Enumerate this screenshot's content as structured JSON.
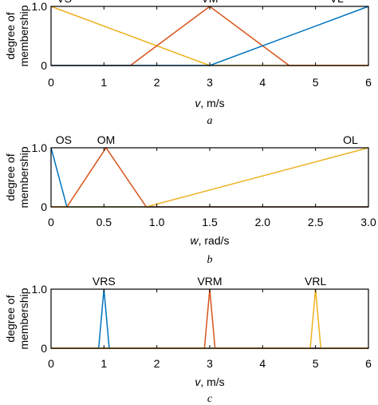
{
  "chart_data": [
    {
      "type": "line",
      "caption": "a",
      "xlabel_var": "v",
      "xlabel_unit": ", m/s",
      "ylabel_lines": [
        "degree of",
        "membership"
      ],
      "xlim": [
        0,
        6
      ],
      "ylim": [
        0,
        1
      ],
      "xticks": [
        0,
        1,
        2,
        3,
        4,
        5,
        6
      ],
      "xtick_labels": [
        "0",
        "1",
        "2",
        "3",
        "4",
        "5",
        "6"
      ],
      "yticks": [
        0,
        1
      ],
      "ytick_labels": [
        "0",
        "1.0"
      ],
      "grid": false,
      "series": [
        {
          "name": "VS",
          "color": "#EDB120",
          "points": [
            [
              0,
              1
            ],
            [
              3,
              0
            ],
            [
              6,
              0
            ]
          ],
          "label_at": [
            0.25,
            1.07
          ]
        },
        {
          "name": "VM",
          "color": "#D95319",
          "points": [
            [
              0,
              0
            ],
            [
              1.5,
              0
            ],
            [
              3,
              1
            ],
            [
              4.5,
              0
            ],
            [
              6,
              0
            ]
          ],
          "label_at": [
            3.0,
            1.07
          ]
        },
        {
          "name": "VL",
          "color": "#0072BD",
          "points": [
            [
              0,
              0
            ],
            [
              3,
              0
            ],
            [
              6,
              1
            ]
          ],
          "label_at": [
            5.4,
            1.07
          ]
        }
      ]
    },
    {
      "type": "line",
      "caption": "b",
      "xlabel_var": "w",
      "xlabel_unit": ", rad/s",
      "ylabel_lines": [
        "degree of",
        "membership"
      ],
      "xlim": [
        0,
        3
      ],
      "ylim": [
        0,
        1
      ],
      "xticks": [
        0,
        0.5,
        1,
        1.5,
        2,
        2.5,
        3
      ],
      "xtick_labels": [
        "0",
        "0.5",
        "1.0",
        "1.5",
        "2.0",
        "2.5",
        "3.0"
      ],
      "yticks": [
        0,
        1
      ],
      "ytick_labels": [
        "0",
        "1.0"
      ],
      "grid": false,
      "series": [
        {
          "name": "OS",
          "color": "#0072BD",
          "points": [
            [
              0,
              1
            ],
            [
              0.15,
              0
            ],
            [
              3,
              0
            ]
          ],
          "label_at": [
            0.12,
            1.07
          ]
        },
        {
          "name": "OM",
          "color": "#D95319",
          "points": [
            [
              0,
              0
            ],
            [
              0.15,
              0
            ],
            [
              0.52,
              1
            ],
            [
              0.9,
              0
            ],
            [
              3,
              0
            ]
          ],
          "label_at": [
            0.52,
            1.07
          ]
        },
        {
          "name": "OL",
          "color": "#EDB120",
          "points": [
            [
              0,
              0
            ],
            [
              0.9,
              0
            ],
            [
              3,
              1
            ]
          ],
          "label_at": [
            2.83,
            1.07
          ]
        }
      ]
    },
    {
      "type": "line",
      "caption": "c",
      "xlabel_var": "v",
      "xlabel_unit": ", m/s",
      "ylabel_lines": [
        "degree of",
        "membership"
      ],
      "xlim": [
        0,
        6
      ],
      "ylim": [
        0,
        1
      ],
      "xticks": [
        0,
        1,
        2,
        3,
        4,
        5,
        6
      ],
      "xtick_labels": [
        "0",
        "1",
        "2",
        "3",
        "4",
        "5",
        "6"
      ],
      "yticks": [
        0,
        1
      ],
      "ytick_labels": [
        "0",
        "1.0"
      ],
      "grid": false,
      "series": [
        {
          "name": "VRS",
          "color": "#0072BD",
          "points": [
            [
              0,
              0
            ],
            [
              0.9,
              0
            ],
            [
              1,
              1
            ],
            [
              1.1,
              0
            ],
            [
              6,
              0
            ]
          ],
          "label_at": [
            1.0,
            1.07
          ]
        },
        {
          "name": "VRM",
          "color": "#D95319",
          "points": [
            [
              0,
              0
            ],
            [
              2.9,
              0
            ],
            [
              3,
              1
            ],
            [
              3.1,
              0
            ],
            [
              6,
              0
            ]
          ],
          "label_at": [
            3.0,
            1.07
          ]
        },
        {
          "name": "VRL",
          "color": "#EDB120",
          "points": [
            [
              0,
              0
            ],
            [
              4.9,
              0
            ],
            [
              5,
              1
            ],
            [
              5.1,
              0
            ],
            [
              6,
              0
            ]
          ],
          "label_at": [
            5.0,
            1.07
          ]
        }
      ]
    }
  ]
}
